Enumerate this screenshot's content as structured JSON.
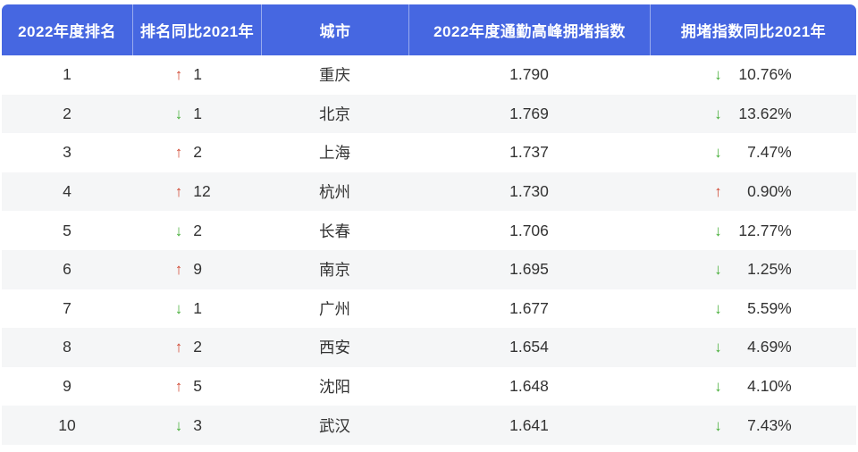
{
  "colors": {
    "header_bg": "#4667e1",
    "header_text": "#ffffff",
    "row_alt_bg": "#f5f6f7",
    "body_text": "#333333",
    "up_red": "#d0452f",
    "down_green": "#46ae38"
  },
  "icons": {
    "up": "↑",
    "down": "↓"
  },
  "table": {
    "headers": [
      "2022年度排名",
      "排名同比2021年",
      "城市",
      "2022年度通勤高峰拥堵指数",
      "拥堵指数同比2021年"
    ],
    "rows": [
      {
        "rank": "1",
        "rank_change_dir": "up",
        "rank_change": "1",
        "city": "重庆",
        "index": "1.790",
        "index_change_dir": "down",
        "index_change": "10.76%"
      },
      {
        "rank": "2",
        "rank_change_dir": "down",
        "rank_change": "1",
        "city": "北京",
        "index": "1.769",
        "index_change_dir": "down",
        "index_change": "13.62%"
      },
      {
        "rank": "3",
        "rank_change_dir": "up",
        "rank_change": "2",
        "city": "上海",
        "index": "1.737",
        "index_change_dir": "down",
        "index_change": "7.47%"
      },
      {
        "rank": "4",
        "rank_change_dir": "up",
        "rank_change": "12",
        "city": "杭州",
        "index": "1.730",
        "index_change_dir": "up",
        "index_change": "0.90%"
      },
      {
        "rank": "5",
        "rank_change_dir": "down",
        "rank_change": "2",
        "city": "长春",
        "index": "1.706",
        "index_change_dir": "down",
        "index_change": "12.77%"
      },
      {
        "rank": "6",
        "rank_change_dir": "up",
        "rank_change": "9",
        "city": "南京",
        "index": "1.695",
        "index_change_dir": "down",
        "index_change": "1.25%"
      },
      {
        "rank": "7",
        "rank_change_dir": "down",
        "rank_change": "1",
        "city": "广州",
        "index": "1.677",
        "index_change_dir": "down",
        "index_change": "5.59%"
      },
      {
        "rank": "8",
        "rank_change_dir": "up",
        "rank_change": "2",
        "city": "西安",
        "index": "1.654",
        "index_change_dir": "down",
        "index_change": "4.69%"
      },
      {
        "rank": "9",
        "rank_change_dir": "up",
        "rank_change": "5",
        "city": "沈阳",
        "index": "1.648",
        "index_change_dir": "down",
        "index_change": "4.10%"
      },
      {
        "rank": "10",
        "rank_change_dir": "down",
        "rank_change": "3",
        "city": "武汉",
        "index": "1.641",
        "index_change_dir": "down",
        "index_change": "7.43%"
      }
    ]
  }
}
